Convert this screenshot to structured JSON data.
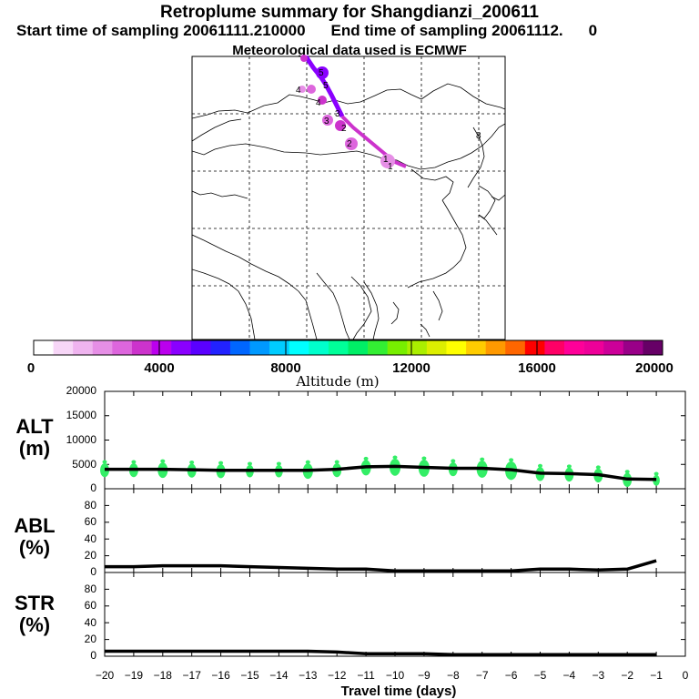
{
  "header": {
    "title": "Retroplume summary for Shangdianzi_200611",
    "start_label": "Start time of sampling 20061111.210000",
    "end_label": "End time of sampling 20061112.",
    "end_suffix": "0",
    "met_label": "Meteorological data used is ECMWF"
  },
  "colorbar": {
    "label": "Altitude (m)",
    "tick_labels": [
      "0",
      "4000",
      "8000",
      "12000",
      "16000",
      "20000"
    ],
    "colors": [
      "#ffffff",
      "#f7d6f7",
      "#efb4ef",
      "#e68fe6",
      "#dd66dd",
      "#cc33cc",
      "#bb00ee",
      "#8a00ff",
      "#5a00ff",
      "#2222ff",
      "#0066ff",
      "#0099ff",
      "#00ccff",
      "#00ffff",
      "#00ffcc",
      "#00ff99",
      "#00ee66",
      "#33ee33",
      "#77ee00",
      "#aaee00",
      "#ddee00",
      "#ffff00",
      "#ffcc00",
      "#ff9900",
      "#ff6600",
      "#ff0000",
      "#ff0066",
      "#ff0099",
      "#ee0099",
      "#cc0099",
      "#990088",
      "#660066"
    ]
  },
  "map": {
    "day_labels": [
      "1",
      "1",
      "2",
      "2",
      "3",
      "3",
      "4",
      "4",
      "5",
      "5",
      "8"
    ]
  },
  "panels": {
    "alt": {
      "label_line1": "ALT",
      "label_line2": "(m)",
      "tick_labels": [
        "0",
        "5000",
        "10000",
        "15000",
        "20000"
      ]
    },
    "abl": {
      "label_line1": "ABL",
      "label_line2": "(%)",
      "tick_labels": [
        "0",
        "20",
        "40",
        "60",
        "80"
      ]
    },
    "str": {
      "label_line1": "STR",
      "label_line2": "(%)",
      "tick_labels": [
        "0",
        "20",
        "40",
        "60",
        "80"
      ]
    }
  },
  "x_axis": {
    "label": "Travel time (days)",
    "tick_labels": [
      "−20",
      "−19",
      "−18",
      "−17",
      "−16",
      "−15",
      "−14",
      "−13",
      "−12",
      "−11",
      "−10",
      "−9",
      "−8",
      "−7",
      "−6",
      "−5",
      "−4",
      "−3",
      "−2",
      "−1",
      "0"
    ]
  },
  "chart_data": [
    {
      "type": "line",
      "title": "ALT",
      "ylabel": "ALT (m)",
      "xlabel": "Travel time (days)",
      "xlim": [
        -20,
        0
      ],
      "ylim": [
        0,
        20000
      ],
      "x": [
        -20,
        -19,
        -18,
        -17,
        -16,
        -15,
        -14,
        -13,
        -12,
        -11,
        -10,
        -9,
        -8,
        -7,
        -6,
        -5,
        -4,
        -3,
        -2,
        -1
      ],
      "values": [
        4000,
        4000,
        4000,
        3900,
        3800,
        3800,
        3800,
        3800,
        4000,
        4500,
        4600,
        4400,
        4200,
        4200,
        3900,
        3200,
        3100,
        2900,
        2000,
        1900
      ],
      "scatter_sizes": [
        9,
        9,
        10,
        9,
        9,
        8,
        8,
        10,
        9,
        10,
        11,
        11,
        9,
        11,
        12,
        9,
        9,
        9,
        9,
        7
      ]
    },
    {
      "type": "line",
      "title": "ABL",
      "ylabel": "ABL (%)",
      "xlim": [
        -20,
        0
      ],
      "ylim": [
        0,
        100
      ],
      "x": [
        -20,
        -19,
        -18,
        -17,
        -16,
        -15,
        -14,
        -13,
        -12,
        -11,
        -10,
        -9,
        -8,
        -7,
        -6,
        -5,
        -4,
        -3,
        -2,
        -1
      ],
      "values": [
        7,
        7,
        8,
        8,
        8,
        7,
        6,
        5,
        4,
        4,
        2,
        2,
        2,
        2,
        2,
        4,
        4,
        3,
        4,
        14
      ]
    },
    {
      "type": "line",
      "title": "STR",
      "ylabel": "STR (%)",
      "xlim": [
        -20,
        0
      ],
      "ylim": [
        0,
        100
      ],
      "x": [
        -20,
        -19,
        -18,
        -17,
        -16,
        -15,
        -14,
        -13,
        -12,
        -11,
        -10,
        -9,
        -8,
        -7,
        -6,
        -5,
        -4,
        -3,
        -2,
        -1
      ],
      "values": [
        6,
        6,
        6,
        6,
        6,
        6,
        6,
        6,
        5,
        3,
        3,
        3,
        2,
        2,
        2,
        2,
        2,
        2,
        2,
        2
      ]
    }
  ]
}
